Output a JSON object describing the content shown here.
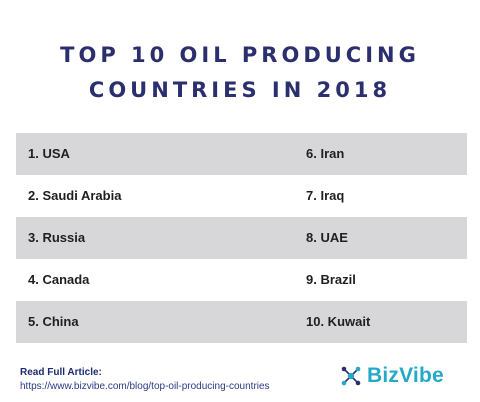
{
  "title": {
    "line1": "TOP 10 OIL PRODUCING",
    "line2": "COUNTRIES IN 2018"
  },
  "rows": [
    {
      "left": "1. USA",
      "right": "6. Iran"
    },
    {
      "left": "2. Saudi Arabia",
      "right": "7. Iraq"
    },
    {
      "left": "3. Russia",
      "right": "8. UAE"
    },
    {
      "left": "4. Canada",
      "right": "9. Brazil"
    },
    {
      "left": "5. China",
      "right": "10. Kuwait"
    }
  ],
  "footer": {
    "label": "Read Full Article:",
    "url": "https://www.bizvibe.com/blog/top-oil-producing-countries"
  },
  "logo": {
    "brand": "BizVibe",
    "icon": "network-nodes-icon"
  },
  "colors": {
    "title": "#2b2f6e",
    "row_shade": "#d7d7d9",
    "brand": "#26a9c8",
    "footer_link": "#2b3a86"
  }
}
